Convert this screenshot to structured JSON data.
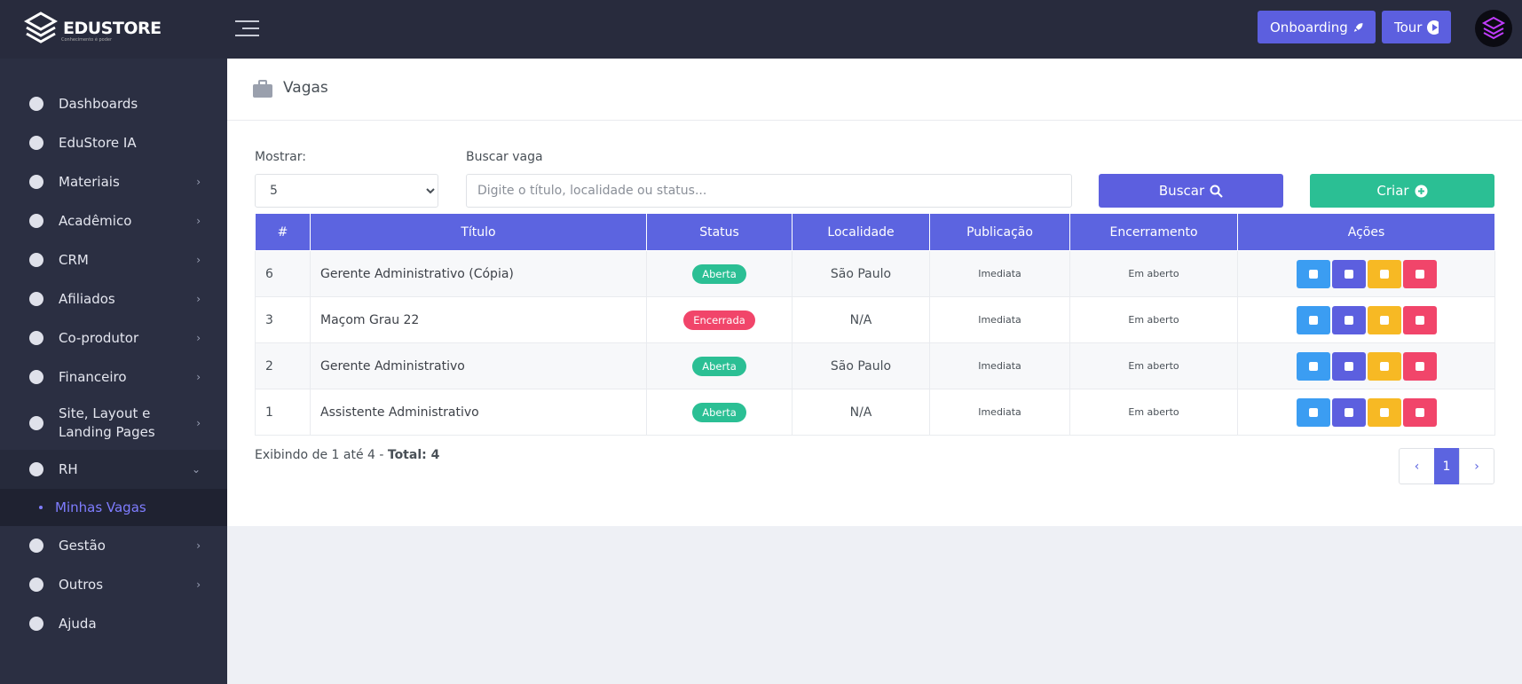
{
  "brand": {
    "name": "EDUSTORE",
    "tagline": "Conhecimento é poder"
  },
  "header": {
    "onboarding": "Onboarding",
    "tour": "Tour"
  },
  "sidebar": {
    "items": [
      {
        "label": "Dashboards",
        "expandable": false
      },
      {
        "label": "EduStore IA",
        "expandable": false
      },
      {
        "label": "Materiais",
        "expandable": true
      },
      {
        "label": "Acadêmico",
        "expandable": true
      },
      {
        "label": "CRM",
        "expandable": true
      },
      {
        "label": "Afiliados",
        "expandable": true
      },
      {
        "label": "Co-produtor",
        "expandable": true
      },
      {
        "label": "Financeiro",
        "expandable": true
      },
      {
        "label": "Site, Layout e Landing Pages",
        "expandable": true
      },
      {
        "label": "RH",
        "expandable": true,
        "open": true,
        "children": [
          "Minhas Vagas"
        ]
      },
      {
        "label": "Gestão",
        "expandable": true
      },
      {
        "label": "Outros",
        "expandable": true
      },
      {
        "label": "Ajuda",
        "expandable": false
      }
    ]
  },
  "page": {
    "title": "Vagas"
  },
  "filters": {
    "show_label": "Mostrar:",
    "show_value": 5,
    "search_label": "Buscar vaga",
    "search_placeholder": "Digite o título, localidade ou status...",
    "search_button": "Buscar",
    "create_button": "Criar"
  },
  "table": {
    "columns": [
      "#",
      "Título",
      "Status",
      "Localidade",
      "Publicação",
      "Encerramento",
      "Ações"
    ],
    "rows": [
      {
        "id": 6,
        "title": "Gerente Administrativo (Cópia)",
        "status": "Aberta",
        "status_color": "#2bbf94",
        "location": "São Paulo",
        "publication": "Imediata",
        "closing": "Em aberto"
      },
      {
        "id": 3,
        "title": "Maçom Grau 22",
        "status": "Encerrada",
        "status_color": "#f1456a",
        "location": "N/A",
        "publication": "Imediata",
        "closing": "Em aberto"
      },
      {
        "id": 2,
        "title": "Gerente Administrativo",
        "status": "Aberta",
        "status_color": "#2bbf94",
        "location": "São Paulo",
        "publication": "Imediata",
        "closing": "Em aberto"
      },
      {
        "id": 1,
        "title": "Assistente Administrativo",
        "status": "Aberta",
        "status_color": "#2bbf94",
        "location": "N/A",
        "publication": "Imediata",
        "closing": "Em aberto"
      }
    ]
  },
  "footer": {
    "summary": "Exibindo de 1 até 4 - ",
    "total": "Total: 4"
  },
  "pagination": {
    "current": 1
  }
}
